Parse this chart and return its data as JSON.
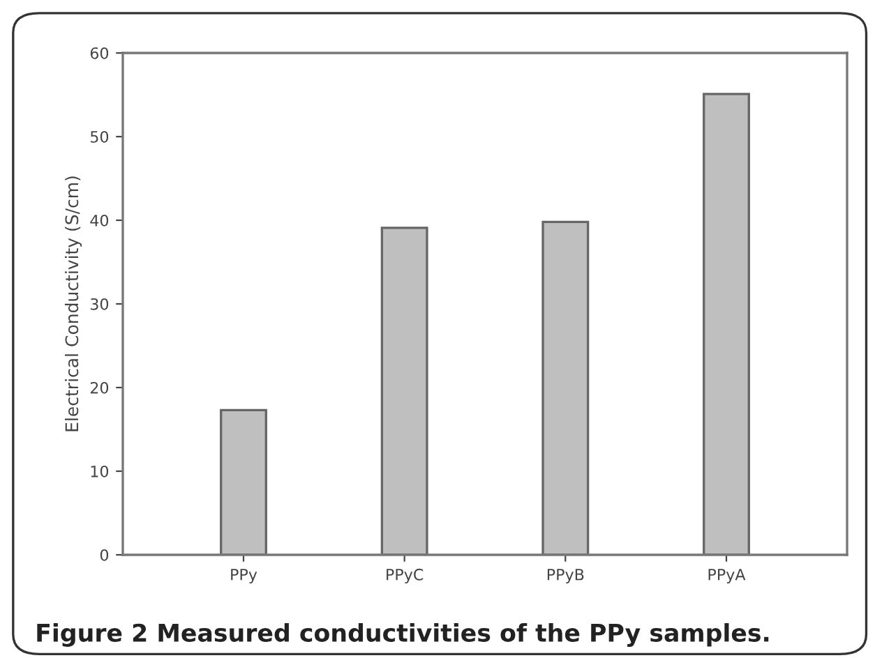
{
  "chart_data": {
    "type": "bar",
    "categories": [
      "PPy",
      "PPyC",
      "PPyB",
      "PPyA"
    ],
    "values": [
      17.3,
      39.1,
      39.8,
      55.1
    ],
    "color": "#bfbfbf",
    "ylabel": "Electrical Conductivity (S/cm)",
    "ylim": [
      0,
      60
    ],
    "yticks": [
      0,
      10,
      20,
      30,
      40,
      50,
      60
    ],
    "grid": false,
    "annotations": [
      "Figure 2 Measured conductivities of the PPy samples."
    ]
  }
}
